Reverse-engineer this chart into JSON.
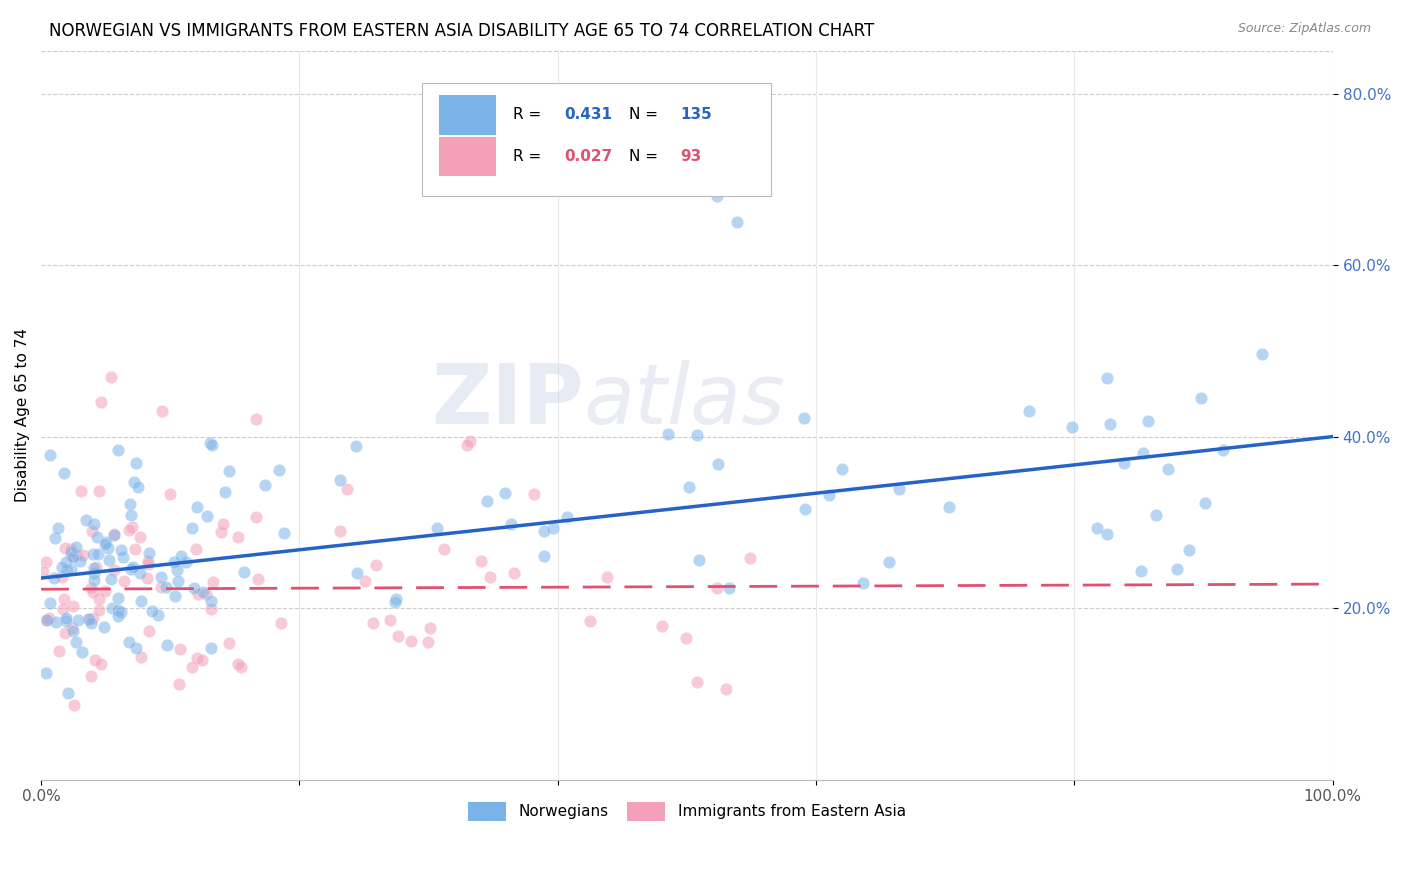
{
  "title": "NORWEGIAN VS IMMIGRANTS FROM EASTERN ASIA DISABILITY AGE 65 TO 74 CORRELATION CHART",
  "source": "Source: ZipAtlas.com",
  "ylabel": "Disability Age 65 to 74",
  "xlim": [
    0.0,
    1.0
  ],
  "ylim": [
    0.0,
    0.85
  ],
  "ytick_vals": [
    0.2,
    0.4,
    0.6,
    0.8
  ],
  "ytick_labels": [
    "20.0%",
    "40.0%",
    "60.0%",
    "80.0%"
  ],
  "xtick_vals": [
    0.0,
    0.2,
    0.4,
    0.6,
    0.8,
    1.0
  ],
  "xtick_labels": [
    "0.0%",
    "",
    "",
    "",
    "",
    "100.0%"
  ],
  "norwegians_R": 0.431,
  "norwegians_N": 135,
  "immigrants_R": 0.027,
  "immigrants_N": 93,
  "norwegian_color": "#7ab3e8",
  "immigrant_color": "#f4a0b8",
  "norwegian_line_color": "#2563c7",
  "immigrant_line_color": "#e05070",
  "ytick_color": "#4472c4",
  "xtick_color": "#555555",
  "legend_label_norwegian": "Norwegians",
  "legend_label_immigrant": "Immigrants from Eastern Asia",
  "background_color": "#ffffff",
  "grid_color": "#cccccc",
  "title_fontsize": 12,
  "ylabel_fontsize": 11,
  "tick_fontsize": 11,
  "legend_fontsize": 11,
  "scatter_alpha": 0.55,
  "scatter_size": 80,
  "nor_line_y0": 0.235,
  "nor_line_y1": 0.4,
  "imm_line_y0": 0.222,
  "imm_line_y1": 0.228
}
